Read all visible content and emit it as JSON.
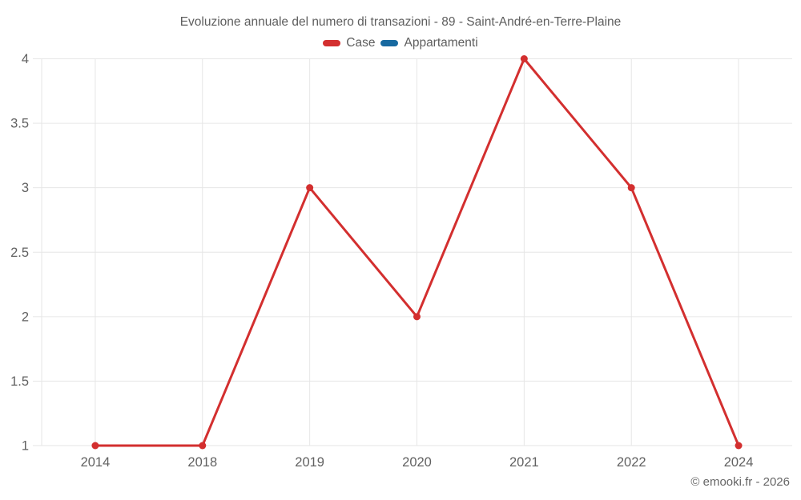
{
  "chart": {
    "title": "Evoluzione annuale del numero di transazioni - 89 - Saint-André-en-Terre-Plaine",
    "copyright": "© emooki.fr - 2026"
  },
  "chart_data": {
    "type": "line",
    "title": "Evoluzione annuale del numero di transazioni - 89 - Saint-André-en-Terre-Plaine",
    "categories": [
      "2014",
      "2018",
      "2019",
      "2020",
      "2021",
      "2022",
      "2024"
    ],
    "series": [
      {
        "name": "Case",
        "color": "#d32f2f",
        "values": [
          1,
          1,
          3,
          2,
          4,
          3,
          1
        ]
      },
      {
        "name": "Appartamenti",
        "color": "#1769a0",
        "values": []
      }
    ],
    "xlabel": "",
    "ylabel": "",
    "ylim": [
      1,
      4
    ],
    "yticks": [
      1,
      1.5,
      2,
      2.5,
      3,
      3.5,
      4
    ],
    "grid": true,
    "legend_position": "top",
    "text_color": "#616161",
    "grid_color": "#e6e6e6",
    "marker_radius": 4.5,
    "line_width": 3
  }
}
